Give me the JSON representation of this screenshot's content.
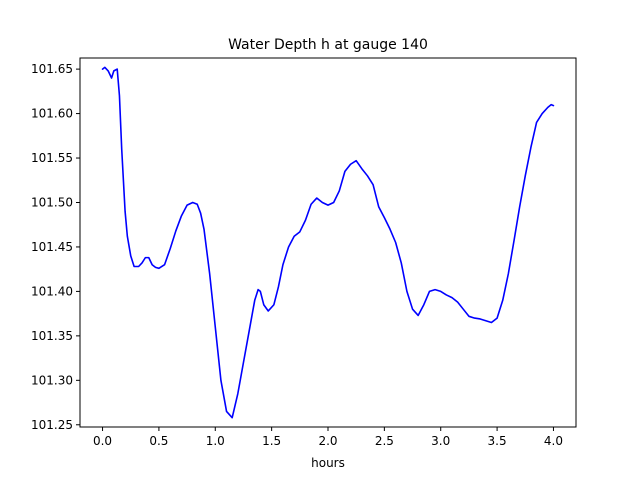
{
  "chart_data": {
    "type": "line",
    "title": "Water Depth h at gauge 140",
    "xlabel": "hours",
    "ylabel": "",
    "xlim": [
      -0.2,
      4.2
    ],
    "ylim": [
      101.2475,
      101.6625
    ],
    "x_ticks": [
      0.0,
      0.5,
      1.0,
      1.5,
      2.0,
      2.5,
      3.0,
      3.5,
      4.0
    ],
    "x_tick_labels": [
      "0.0",
      "0.5",
      "1.0",
      "1.5",
      "2.0",
      "2.5",
      "3.0",
      "3.5",
      "4.0"
    ],
    "y_ticks": [
      101.25,
      101.3,
      101.35,
      101.4,
      101.45,
      101.5,
      101.55,
      101.6,
      101.65
    ],
    "y_tick_labels": [
      "101.25",
      "101.30",
      "101.35",
      "101.40",
      "101.45",
      "101.50",
      "101.55",
      "101.60",
      "101.65"
    ],
    "grid": false,
    "legend": "none",
    "line_color": "#0000ff",
    "series": [
      {
        "x": [
          0.0,
          0.02,
          0.05,
          0.08,
          0.1,
          0.13,
          0.15,
          0.17,
          0.2,
          0.22,
          0.25,
          0.28,
          0.32,
          0.35,
          0.38,
          0.41,
          0.44,
          0.47,
          0.5,
          0.55,
          0.6,
          0.65,
          0.7,
          0.75,
          0.8,
          0.84,
          0.87,
          0.9,
          0.95,
          1.0,
          1.05,
          1.1,
          1.15,
          1.2,
          1.25,
          1.3,
          1.35,
          1.38,
          1.4,
          1.43,
          1.47,
          1.52,
          1.56,
          1.6,
          1.65,
          1.7,
          1.75,
          1.8,
          1.85,
          1.9,
          1.95,
          2.0,
          2.05,
          2.1,
          2.15,
          2.2,
          2.25,
          2.3,
          2.35,
          2.4,
          2.45,
          2.5,
          2.55,
          2.6,
          2.65,
          2.7,
          2.75,
          2.8,
          2.85,
          2.9,
          2.95,
          3.0,
          3.05,
          3.1,
          3.15,
          3.2,
          3.25,
          3.3,
          3.35,
          3.4,
          3.45,
          3.5,
          3.55,
          3.6,
          3.65,
          3.7,
          3.75,
          3.8,
          3.85,
          3.9,
          3.95,
          3.98,
          4.0
        ],
        "y": [
          101.65,
          101.652,
          101.648,
          101.64,
          101.648,
          101.65,
          101.62,
          101.56,
          101.49,
          101.462,
          101.44,
          101.428,
          101.428,
          101.432,
          101.438,
          101.438,
          101.43,
          101.427,
          101.426,
          101.43,
          101.448,
          101.468,
          101.485,
          101.497,
          101.5,
          101.498,
          101.488,
          101.47,
          101.42,
          101.36,
          101.3,
          101.265,
          101.258,
          101.285,
          101.32,
          101.355,
          101.39,
          101.402,
          101.4,
          101.385,
          101.378,
          101.385,
          101.405,
          101.43,
          101.45,
          101.462,
          101.467,
          101.48,
          101.498,
          101.505,
          101.5,
          101.497,
          101.5,
          101.513,
          101.535,
          101.543,
          101.547,
          101.538,
          101.53,
          101.52,
          101.495,
          101.483,
          101.47,
          101.455,
          101.432,
          101.4,
          101.38,
          101.373,
          101.385,
          101.4,
          101.402,
          101.4,
          101.396,
          101.393,
          101.388,
          101.38,
          101.372,
          101.37,
          101.369,
          101.367,
          101.365,
          101.37,
          101.39,
          101.42,
          101.457,
          101.495,
          101.53,
          101.562,
          101.59,
          101.6,
          101.607,
          101.61,
          101.609
        ]
      }
    ]
  }
}
